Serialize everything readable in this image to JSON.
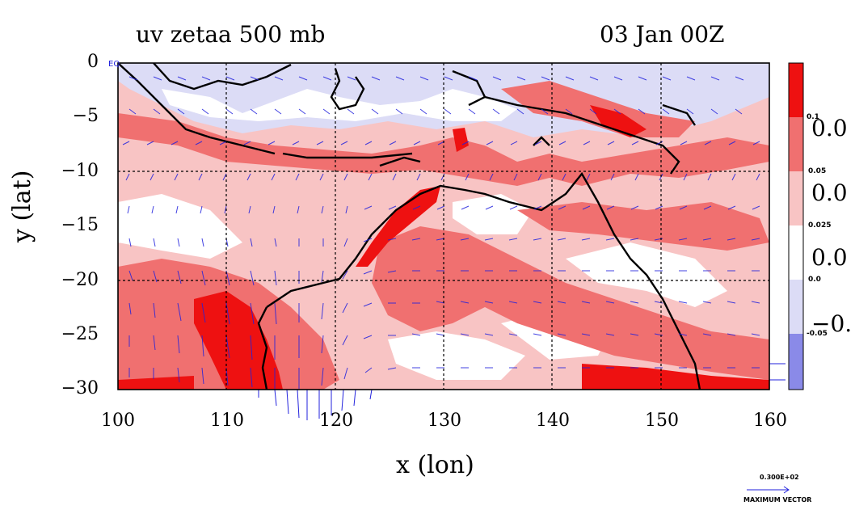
{
  "title_left": "uv zetaa 500 mb",
  "title_right": "03 Jan 00Z",
  "y_axis": {
    "label": "y (lat)",
    "ticks": [
      "0",
      "−5",
      "−10",
      "−15",
      "−20",
      "−25",
      "−30"
    ],
    "values": [
      0,
      -5,
      -10,
      -15,
      -20,
      -25,
      -30
    ]
  },
  "x_axis": {
    "label": "x (lon)",
    "ticks": [
      "100",
      "110",
      "120",
      "130",
      "140",
      "150",
      "160"
    ],
    "values": [
      100,
      110,
      120,
      130,
      140,
      150,
      160
    ]
  },
  "colorbar": {
    "levels_small": [
      "0.1",
      "0.05",
      "0.025",
      "0.0",
      "-0.05"
    ],
    "levels_big": [
      "0.0",
      "0.0",
      "0.0",
      "−0."
    ],
    "colors": [
      "#ee1111",
      "#f07070",
      "#f8c4c4",
      "#ffffff",
      "#dcdcf6",
      "#8a8ae8"
    ]
  },
  "corner_label": "EQ",
  "max_vector": {
    "value": "0.300E+02",
    "label": "MAXIMUM VECTOR"
  },
  "colors": {
    "land": "#000000",
    "vectors": "#2222dd",
    "grid": "#000000"
  }
}
